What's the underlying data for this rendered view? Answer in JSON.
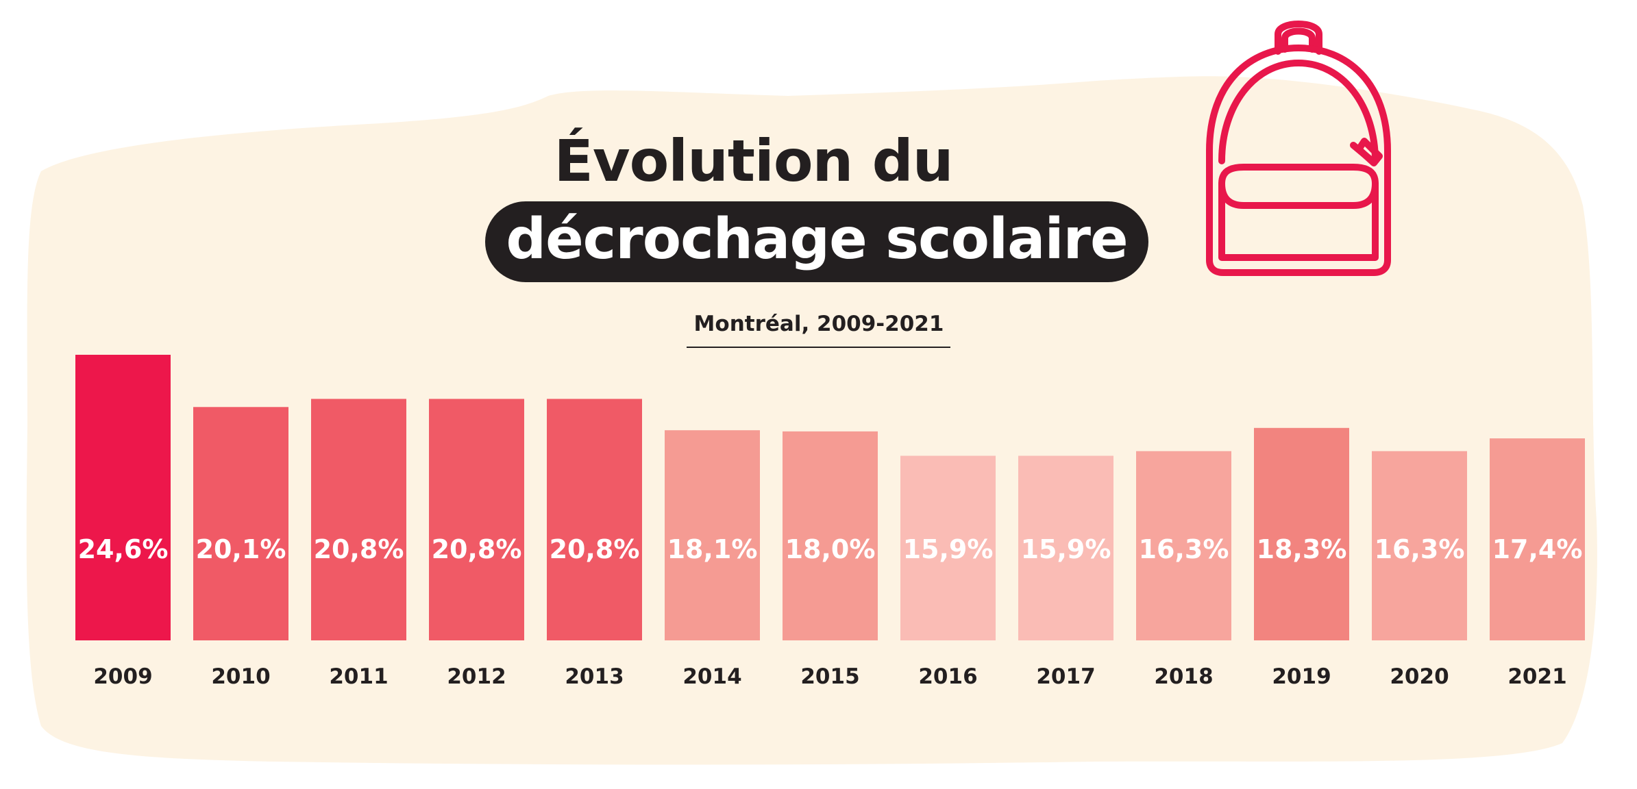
{
  "title": {
    "line1": "Évolution du",
    "line2": "décrochage scolaire"
  },
  "subtitle": "Montréal, 2009-2021",
  "icon": "backpack-icon",
  "colors": {
    "background_blob": "#fdf3e3",
    "title_pill": "#231f20",
    "icon_stroke": "#e8174b"
  },
  "chart_data": {
    "type": "bar",
    "title": "Évolution du décrochage scolaire",
    "subtitle": "Montréal, 2009-2021",
    "categories": [
      "2009",
      "2010",
      "2011",
      "2012",
      "2013",
      "2014",
      "2015",
      "2016",
      "2017",
      "2018",
      "2019",
      "2020",
      "2021"
    ],
    "values": [
      24.6,
      20.1,
      20.8,
      20.8,
      20.8,
      18.1,
      18.0,
      15.9,
      15.9,
      16.3,
      18.3,
      16.3,
      17.4
    ],
    "value_labels": [
      "24,6%",
      "20,1%",
      "20,8%",
      "20,8%",
      "20,8%",
      "18,1%",
      "18,0%",
      "15,9%",
      "15,9%",
      "16,3%",
      "18,3%",
      "16,3%",
      "17,4%"
    ],
    "bar_colors": [
      "#ed174b",
      "#f05a66",
      "#f05a66",
      "#f05a66",
      "#f05a66",
      "#f59b93",
      "#f59b93",
      "#fabcb5",
      "#fabcb5",
      "#f7a59d",
      "#f2847f",
      "#f7a59d",
      "#f59b93"
    ],
    "xlabel": "",
    "ylabel": "",
    "ylim": [
      0,
      24.6
    ],
    "grid": false,
    "legend": "none"
  }
}
